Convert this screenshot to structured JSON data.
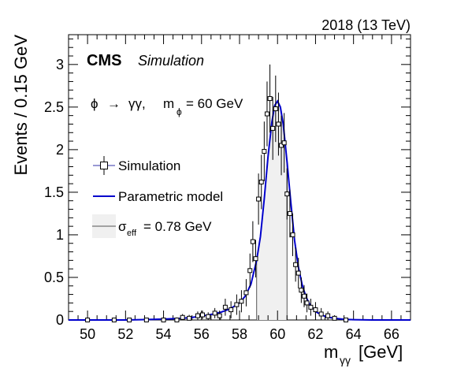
{
  "header": {
    "lumi_label": "2018 (13 TeV)",
    "cms_label": "CMS",
    "extra_label": "Simulation"
  },
  "annotation": {
    "phi": "ϕ",
    "arrow": "→",
    "gammagamma": "γγ,",
    "m": "m",
    "m_sub": "ϕ",
    "value": "= 60 GeV"
  },
  "legend": {
    "simulation": "Simulation",
    "model": "Parametric model",
    "sigma_symbol": "σ",
    "sigma_sub": "eff",
    "sigma_value": "= 0.78 GeV"
  },
  "axes": {
    "x_title_main": "m",
    "x_title_sub": "γγ",
    "x_title_unit": "[GeV]",
    "y_title": "Events / 0.15 GeV"
  },
  "colors": {
    "model": "#0000cc",
    "marker": "#000000",
    "band_fill": "#f0f0f0",
    "band_edge": "#555555"
  },
  "chart_data": {
    "type": "scatter",
    "x_range": [
      49,
      67
    ],
    "y_range": [
      0,
      3.35
    ],
    "x_ticks": [
      50,
      52,
      54,
      56,
      58,
      60,
      62,
      64,
      66
    ],
    "y_ticks": [
      0,
      0.5,
      1,
      1.5,
      2,
      2.5,
      3
    ],
    "sigma_eff_band": [
      58.9,
      60.5
    ],
    "model": {
      "name": "Parametric model",
      "x": [
        49,
        50,
        51,
        52,
        53,
        54,
        54.5,
        55,
        55.5,
        56,
        56.5,
        57,
        57.5,
        58,
        58.3,
        58.6,
        58.9,
        59.1,
        59.3,
        59.5,
        59.7,
        59.85,
        60,
        60.15,
        60.3,
        60.5,
        60.7,
        60.9,
        61.1,
        61.3,
        61.5,
        61.7,
        62,
        62.3,
        62.6,
        63,
        63.5,
        64,
        65,
        66,
        67
      ],
      "y": [
        0.0,
        0.0,
        0.0,
        0.0,
        0.005,
        0.01,
        0.015,
        0.02,
        0.03,
        0.045,
        0.065,
        0.09,
        0.13,
        0.2,
        0.28,
        0.42,
        0.7,
        0.98,
        1.42,
        1.92,
        2.32,
        2.52,
        2.57,
        2.5,
        2.3,
        1.86,
        1.38,
        0.93,
        0.62,
        0.41,
        0.27,
        0.18,
        0.1,
        0.06,
        0.035,
        0.02,
        0.008,
        0.004,
        0.0,
        0.0,
        0.0
      ]
    },
    "points": {
      "name": "Simulation",
      "x": [
        50,
        51.4,
        52.2,
        53.1,
        54.0,
        54.7,
        55.0,
        55.35,
        55.8,
        56.05,
        56.35,
        56.7,
        56.95,
        57.25,
        57.55,
        57.85,
        58.1,
        58.35,
        58.55,
        58.7,
        58.85,
        59.0,
        59.15,
        59.3,
        59.45,
        59.6,
        59.75,
        59.9,
        60.05,
        60.2,
        60.35,
        60.5,
        60.65,
        60.8,
        60.95,
        61.1,
        61.25,
        61.4,
        61.55,
        61.75,
        62.0,
        62.3,
        62.65,
        63.0,
        63.6
      ],
      "y": [
        0.0,
        0.0,
        0.0,
        0.0,
        0.0,
        0.0,
        0.03,
        0.02,
        0.05,
        0.06,
        0.04,
        0.08,
        0.05,
        0.15,
        0.12,
        0.18,
        0.22,
        0.32,
        0.58,
        0.92,
        0.72,
        1.42,
        1.62,
        1.98,
        2.42,
        2.6,
        2.25,
        2.48,
        2.3,
        2.05,
        2.08,
        1.48,
        1.25,
        1.0,
        0.65,
        0.55,
        0.35,
        0.28,
        0.2,
        0.15,
        0.12,
        0.07,
        0.05,
        0.02,
        0.0
      ],
      "err": [
        0.0,
        0.0,
        0.0,
        0.0,
        0.02,
        0.03,
        0.04,
        0.04,
        0.05,
        0.05,
        0.05,
        0.06,
        0.06,
        0.1,
        0.1,
        0.12,
        0.13,
        0.16,
        0.2,
        0.24,
        0.22,
        0.3,
        0.32,
        0.35,
        0.38,
        0.4,
        0.37,
        0.39,
        0.37,
        0.35,
        0.35,
        0.3,
        0.28,
        0.25,
        0.2,
        0.18,
        0.15,
        0.13,
        0.11,
        0.1,
        0.09,
        0.07,
        0.05,
        0.03,
        0.0
      ]
    }
  }
}
